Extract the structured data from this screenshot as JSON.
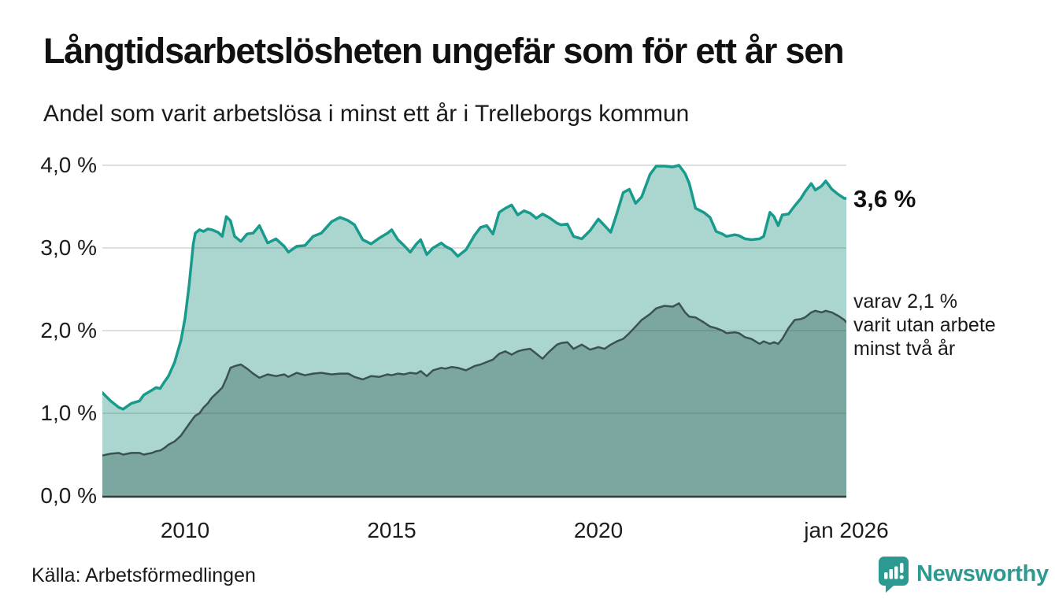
{
  "header": {
    "title": "Långtidsarbetslösheten ungefär som för ett år sen",
    "subtitle": "Andel som varit arbetslösa i minst ett år i Trelleborgs kommun"
  },
  "annotations": {
    "latest_value": "3,6 %",
    "secondary": "varav 2,1 %\nvarit utan arbete\nminst två år"
  },
  "footer": {
    "source": "Källa: Arbetsförmedlingen",
    "brand": "Newsworthy"
  },
  "colors": {
    "line_total": "#189a8c",
    "fill_total": "#abd6d0",
    "line_twoyear": "#3b534f",
    "fill_twoyear": "#7ba7a0",
    "gridline": "rgba(70,70,70,0.22)",
    "axis": "#2f3b38",
    "brand_teal": "#2d9a92",
    "text": "#111111"
  },
  "chart_data": {
    "type": "area",
    "title": "Långtidsarbetslösheten ungefär som för ett år sen",
    "subtitle": "Andel som varit arbetslösa i minst ett år i Trelleborgs kommun",
    "unit": "%",
    "x_range": [
      2008,
      2026
    ],
    "y_range": [
      0,
      4.2
    ],
    "grid": true,
    "legend_position": "right-annotations",
    "y_ticks": [
      {
        "label": "4,0 %",
        "value": 4.0
      },
      {
        "label": "3,0 %",
        "value": 3.0
      },
      {
        "label": "2,0 %",
        "value": 2.0
      },
      {
        "label": "1,0 %",
        "value": 1.0
      },
      {
        "label": "0,0 %",
        "value": 0.0
      }
    ],
    "x_ticks": [
      {
        "label": "2010",
        "year": 2010
      },
      {
        "label": "2015",
        "year": 2015
      },
      {
        "label": "2020",
        "year": 2020
      },
      {
        "label": "jan 2026",
        "year": 2026
      }
    ],
    "x": [
      2008.0,
      2008.2,
      2008.4,
      2008.5,
      2008.7,
      2008.9,
      2009.0,
      2009.2,
      2009.3,
      2009.4,
      2009.5,
      2009.6,
      2009.75,
      2009.9,
      2010.0,
      2010.1,
      2010.2,
      2010.25,
      2010.35,
      2010.45,
      2010.55,
      2010.65,
      2010.8,
      2010.9,
      2011.0,
      2011.1,
      2011.2,
      2011.35,
      2011.5,
      2011.65,
      2011.8,
      2012.0,
      2012.2,
      2012.4,
      2012.5,
      2012.7,
      2012.9,
      2013.1,
      2013.3,
      2013.55,
      2013.75,
      2013.95,
      2014.1,
      2014.3,
      2014.5,
      2014.7,
      2014.9,
      2015.0,
      2015.15,
      2015.3,
      2015.45,
      2015.6,
      2015.7,
      2015.85,
      2016.0,
      2016.2,
      2016.3,
      2016.45,
      2016.6,
      2016.8,
      2017.0,
      2017.15,
      2017.3,
      2017.45,
      2017.6,
      2017.75,
      2017.9,
      2018.05,
      2018.2,
      2018.35,
      2018.5,
      2018.65,
      2018.8,
      2019.0,
      2019.1,
      2019.25,
      2019.4,
      2019.6,
      2019.8,
      2020.0,
      2020.15,
      2020.3,
      2020.45,
      2020.6,
      2020.75,
      2020.9,
      2021.05,
      2021.25,
      2021.4,
      2021.6,
      2021.8,
      2021.95,
      2022.1,
      2022.2,
      2022.35,
      2022.55,
      2022.7,
      2022.85,
      2023.0,
      2023.1,
      2023.3,
      2023.4,
      2023.55,
      2023.7,
      2023.9,
      2024.0,
      2024.15,
      2024.25,
      2024.35,
      2024.45,
      2024.6,
      2024.75,
      2024.9,
      2025.0,
      2025.15,
      2025.25,
      2025.4,
      2025.5,
      2025.65,
      2025.8,
      2025.95,
      2026.0
    ],
    "series": [
      {
        "name": "Andel som varit arbetslösa i minst ett år",
        "end_label": "3,6 %",
        "end_value": 3.6,
        "values": [
          1.25,
          1.15,
          1.07,
          1.05,
          1.12,
          1.15,
          1.22,
          1.28,
          1.31,
          1.3,
          1.38,
          1.45,
          1.62,
          1.88,
          2.15,
          2.55,
          3.05,
          3.18,
          3.22,
          3.2,
          3.23,
          3.22,
          3.19,
          3.14,
          3.38,
          3.33,
          3.14,
          3.08,
          3.17,
          3.18,
          3.27,
          3.06,
          3.11,
          3.02,
          2.95,
          3.02,
          3.03,
          3.14,
          3.18,
          3.32,
          3.37,
          3.33,
          3.28,
          3.1,
          3.05,
          3.12,
          3.18,
          3.22,
          3.1,
          3.03,
          2.95,
          3.05,
          3.1,
          2.92,
          3.0,
          3.06,
          3.02,
          2.98,
          2.9,
          2.98,
          3.15,
          3.25,
          3.27,
          3.17,
          3.43,
          3.48,
          3.52,
          3.4,
          3.45,
          3.42,
          3.36,
          3.41,
          3.37,
          3.3,
          3.28,
          3.29,
          3.14,
          3.11,
          3.21,
          3.35,
          3.27,
          3.19,
          3.42,
          3.67,
          3.71,
          3.54,
          3.62,
          3.89,
          3.99,
          3.99,
          3.98,
          4.0,
          3.9,
          3.78,
          3.48,
          3.43,
          3.37,
          3.2,
          3.17,
          3.14,
          3.16,
          3.15,
          3.11,
          3.1,
          3.11,
          3.14,
          3.43,
          3.38,
          3.27,
          3.4,
          3.41,
          3.51,
          3.6,
          3.68,
          3.78,
          3.7,
          3.75,
          3.81,
          3.71,
          3.65,
          3.6,
          3.6
        ]
      },
      {
        "name": "varav varit utan arbete minst två år",
        "end_label": "varav 2,1 % varit utan arbete minst två år",
        "end_value": 2.1,
        "values": [
          0.49,
          0.51,
          0.52,
          0.5,
          0.52,
          0.52,
          0.5,
          0.52,
          0.54,
          0.55,
          0.58,
          0.62,
          0.66,
          0.73,
          0.8,
          0.87,
          0.94,
          0.97,
          1.0,
          1.07,
          1.12,
          1.19,
          1.26,
          1.31,
          1.42,
          1.55,
          1.57,
          1.59,
          1.54,
          1.48,
          1.43,
          1.47,
          1.45,
          1.47,
          1.44,
          1.49,
          1.46,
          1.48,
          1.49,
          1.47,
          1.48,
          1.48,
          1.44,
          1.41,
          1.45,
          1.44,
          1.47,
          1.46,
          1.48,
          1.47,
          1.49,
          1.48,
          1.51,
          1.45,
          1.52,
          1.55,
          1.54,
          1.56,
          1.55,
          1.52,
          1.57,
          1.59,
          1.62,
          1.65,
          1.72,
          1.75,
          1.71,
          1.75,
          1.77,
          1.78,
          1.72,
          1.66,
          1.74,
          1.83,
          1.85,
          1.86,
          1.78,
          1.83,
          1.77,
          1.8,
          1.78,
          1.83,
          1.87,
          1.9,
          1.97,
          2.05,
          2.13,
          2.2,
          2.27,
          2.3,
          2.29,
          2.33,
          2.22,
          2.17,
          2.16,
          2.1,
          2.05,
          2.03,
          2.0,
          1.97,
          1.98,
          1.97,
          1.92,
          1.9,
          1.84,
          1.87,
          1.84,
          1.86,
          1.84,
          1.9,
          2.03,
          2.13,
          2.14,
          2.16,
          2.22,
          2.24,
          2.22,
          2.24,
          2.22,
          2.18,
          2.13,
          2.1
        ]
      }
    ]
  }
}
